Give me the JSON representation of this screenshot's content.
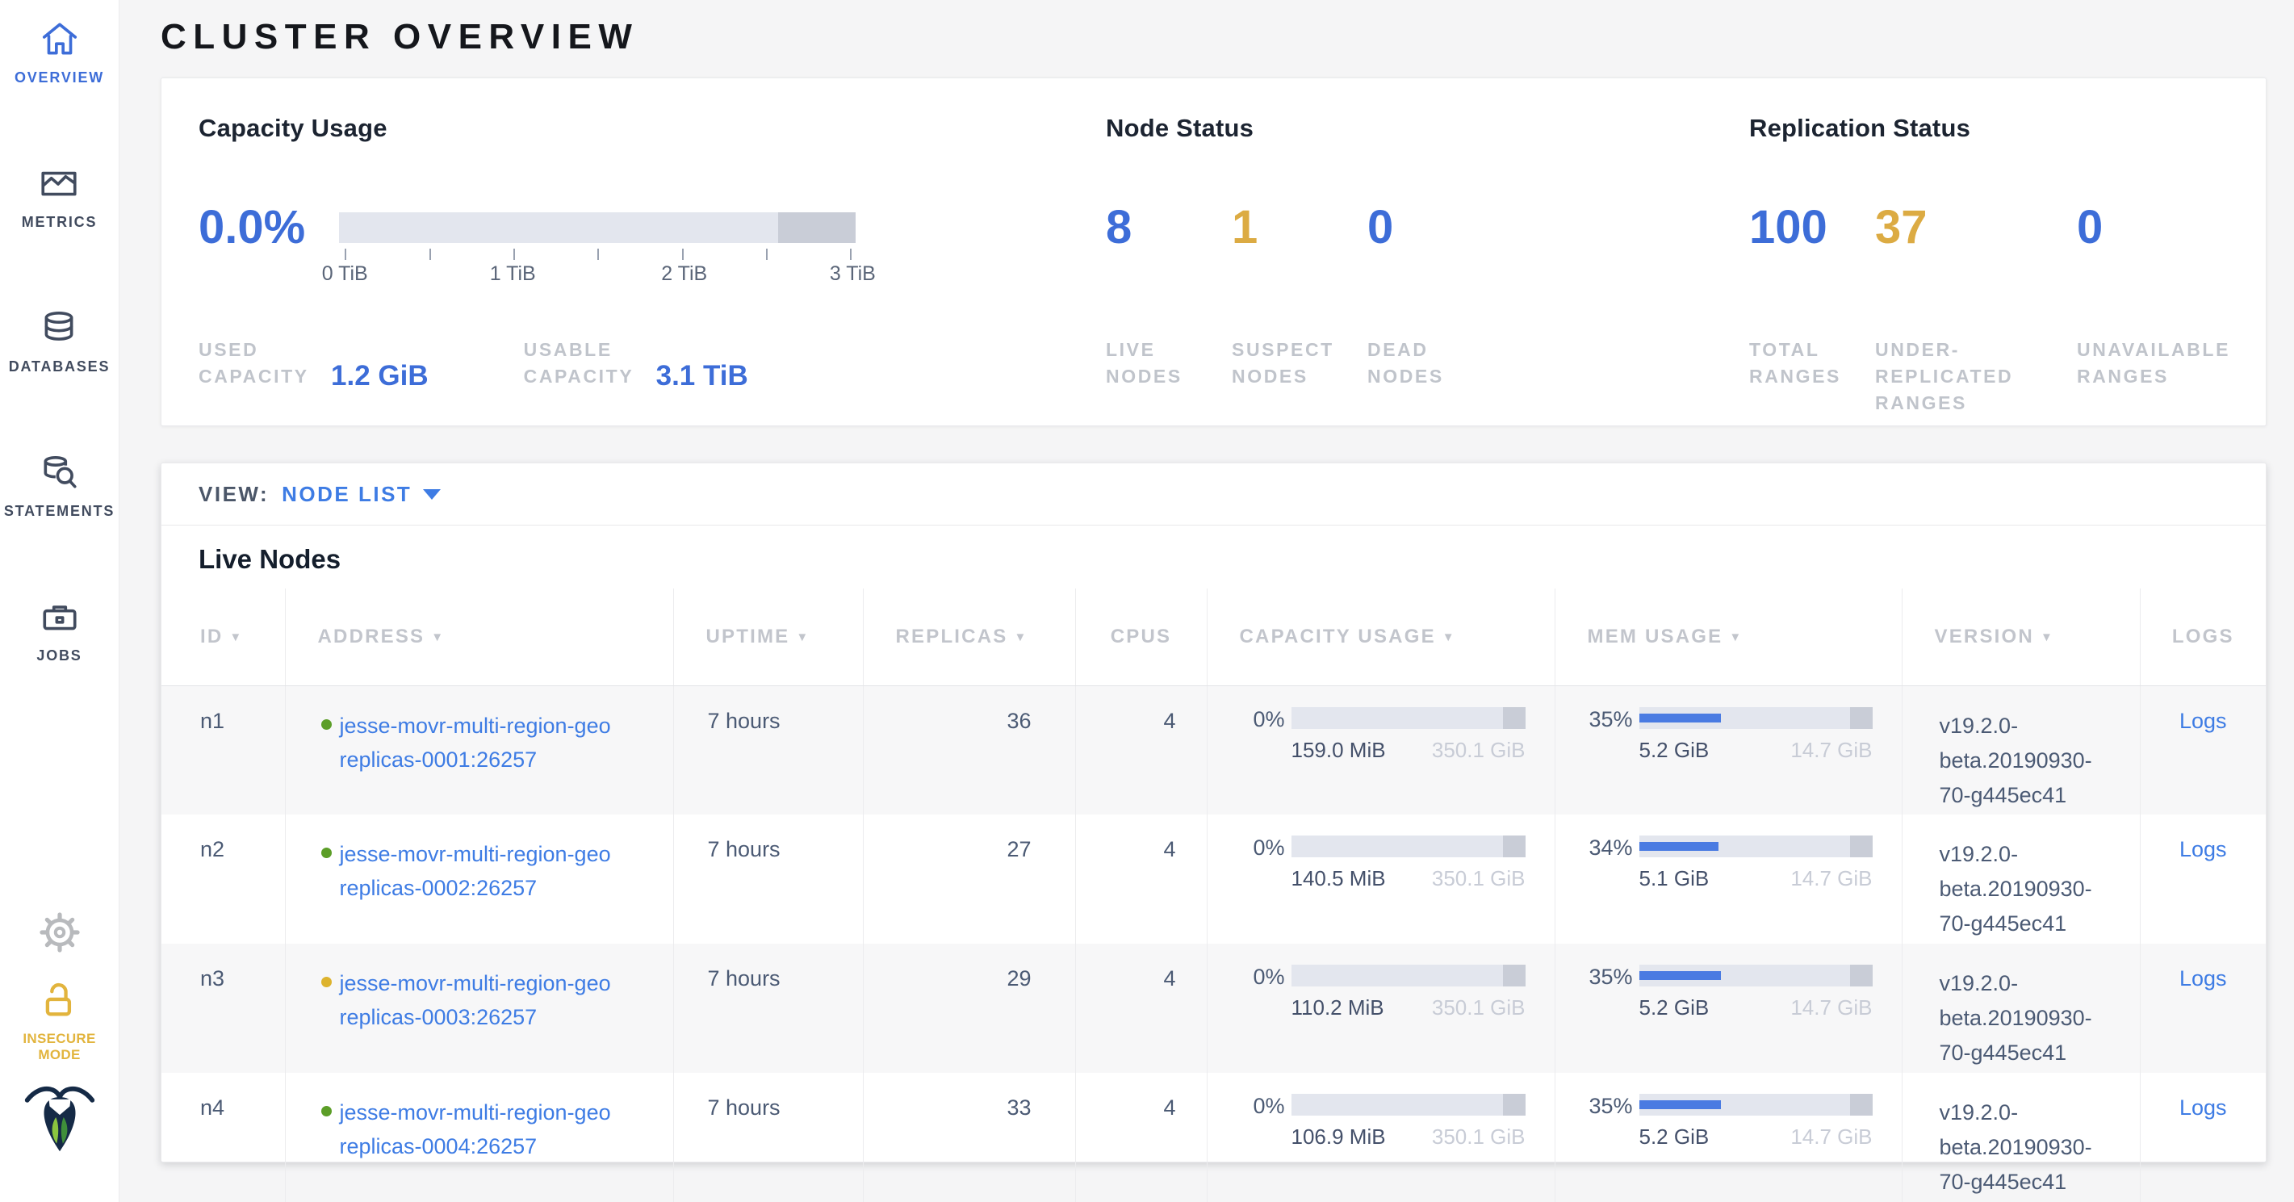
{
  "colors": {
    "accent_blue": "#3d6dd8",
    "accent_yellow": "#dcab43",
    "link_blue": "#3e7ce4",
    "bar_fill": "#4a7be2",
    "bar_track": "#e3e6ee",
    "bar_reserved": "#c9cdd7",
    "dot_green": "#5c9e28",
    "dot_yellow": "#ddb32e",
    "insecure_yellow": "#e2b43d",
    "text_dark": "#1c2431",
    "text_slate": "#4b5a74",
    "text_light": "#c8ccd6",
    "label_gray": "#c0c4cb",
    "header_gray": "#c2c5cc",
    "sidebar_icon": "#4a5568"
  },
  "icons": {
    "sort_desc": "▼"
  },
  "sidebar": {
    "items": [
      {
        "label": "OVERVIEW",
        "icon": "home-icon",
        "state": "active"
      },
      {
        "label": "METRICS",
        "icon": "metrics-icon",
        "state": "inactive"
      },
      {
        "label": "DATABASES",
        "icon": "databases-icon",
        "state": "inactive"
      },
      {
        "label": "STATEMENTS",
        "icon": "statements-icon",
        "state": "inactive"
      },
      {
        "label": "JOBS",
        "icon": "jobs-icon",
        "state": "inactive"
      }
    ],
    "footer": {
      "insecure_label": "INSECURE MODE"
    }
  },
  "header": {
    "title": "CLUSTER OVERVIEW"
  },
  "summary": {
    "capacity": {
      "title": "Capacity Usage",
      "percent": "0.0%",
      "tick_labels": [
        "0 TiB",
        "1 TiB",
        "2 TiB",
        "3 TiB"
      ],
      "fill_pct": 0,
      "stats": [
        {
          "label": "USED CAPACITY",
          "value": "1.2 GiB"
        },
        {
          "label": "USABLE CAPACITY",
          "value": "3.1 TiB"
        }
      ]
    },
    "node_status": {
      "title": "Node Status",
      "stats": [
        {
          "value": "8",
          "tone": "blue",
          "label": "LIVE NODES"
        },
        {
          "value": "1",
          "tone": "yellow",
          "label": "SUSPECT NODES"
        },
        {
          "value": "0",
          "tone": "blue",
          "label": "DEAD NODES"
        }
      ]
    },
    "replication": {
      "title": "Replication Status",
      "stats": [
        {
          "value": "100",
          "tone": "blue",
          "label": "TOTAL RANGES"
        },
        {
          "value": "37",
          "tone": "yellow",
          "label": "UNDER-REPLICATED RANGES"
        },
        {
          "value": "0",
          "tone": "blue",
          "label": "UNAVAILABLE RANGES"
        }
      ]
    }
  },
  "view_bar": {
    "label": "VIEW:",
    "selected": "NODE LIST"
  },
  "table": {
    "title": "Live Nodes",
    "columns": [
      {
        "label": "ID",
        "sortable": true
      },
      {
        "label": "ADDRESS",
        "sortable": true
      },
      {
        "label": "UPTIME",
        "sortable": true
      },
      {
        "label": "REPLICAS",
        "sortable": true
      },
      {
        "label": "CPUS",
        "sortable": false
      },
      {
        "label": "CAPACITY USAGE",
        "sortable": true
      },
      {
        "label": "MEM USAGE",
        "sortable": true
      },
      {
        "label": "VERSION",
        "sortable": true
      },
      {
        "label": "LOGS",
        "sortable": false
      }
    ],
    "rows": [
      {
        "id": "n1",
        "status": "healthy",
        "address": "jesse-movr-multi-region-georeplicas-0001:26257",
        "uptime": "7 hours",
        "replicas": "36",
        "cpus": "4",
        "capacity": {
          "percent": "0%",
          "fill_pct": 0,
          "used": "159.0 MiB",
          "usable": "350.1 GiB"
        },
        "memory": {
          "percent": "35%",
          "fill_pct": 35,
          "used": "5.2 GiB",
          "usable": "14.7 GiB"
        },
        "version": "v19.2.0-beta.20190930-70-g445ec41",
        "logs_label": "Logs"
      },
      {
        "id": "n2",
        "status": "healthy",
        "address": "jesse-movr-multi-region-georeplicas-0002:26257",
        "uptime": "7 hours",
        "replicas": "27",
        "cpus": "4",
        "capacity": {
          "percent": "0%",
          "fill_pct": 0,
          "used": "140.5 MiB",
          "usable": "350.1 GiB"
        },
        "memory": {
          "percent": "34%",
          "fill_pct": 34,
          "used": "5.1 GiB",
          "usable": "14.7 GiB"
        },
        "version": "v19.2.0-beta.20190930-70-g445ec41",
        "logs_label": "Logs"
      },
      {
        "id": "n3",
        "status": "suspect",
        "address": "jesse-movr-multi-region-georeplicas-0003:26257",
        "uptime": "7 hours",
        "replicas": "29",
        "cpus": "4",
        "capacity": {
          "percent": "0%",
          "fill_pct": 0,
          "used": "110.2 MiB",
          "usable": "350.1 GiB"
        },
        "memory": {
          "percent": "35%",
          "fill_pct": 35,
          "used": "5.2 GiB",
          "usable": "14.7 GiB"
        },
        "version": "v19.2.0-beta.20190930-70-g445ec41",
        "logs_label": "Logs"
      },
      {
        "id": "n4",
        "status": "healthy",
        "address": "jesse-movr-multi-region-georeplicas-0004:26257",
        "uptime": "7 hours",
        "replicas": "33",
        "cpus": "4",
        "capacity": {
          "percent": "0%",
          "fill_pct": 0,
          "used": "106.9 MiB",
          "usable": "350.1 GiB"
        },
        "memory": {
          "percent": "35%",
          "fill_pct": 35,
          "used": "5.2 GiB",
          "usable": "14.7 GiB"
        },
        "version": "v19.2.0-beta.20190930-70-g445ec41",
        "logs_label": "Logs"
      }
    ]
  }
}
